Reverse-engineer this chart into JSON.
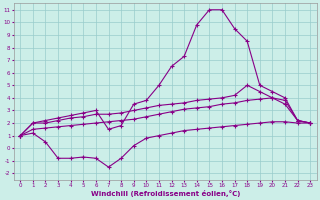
{
  "xlabel": "Windchill (Refroidissement éolien,°C)",
  "background_color": "#cceee8",
  "line_color": "#880088",
  "grid_color": "#99cccc",
  "xlim": [
    -0.5,
    23.5
  ],
  "ylim": [
    -2.5,
    11.5
  ],
  "xticks": [
    0,
    1,
    2,
    3,
    4,
    5,
    6,
    7,
    8,
    9,
    10,
    11,
    12,
    13,
    14,
    15,
    16,
    17,
    18,
    19,
    20,
    21,
    22,
    23
  ],
  "yticks": [
    -2,
    -1,
    0,
    1,
    2,
    3,
    4,
    5,
    6,
    7,
    8,
    9,
    10,
    11
  ],
  "line_spike": [
    [
      0,
      1
    ],
    [
      1,
      2
    ],
    [
      2,
      2.2
    ],
    [
      3,
      2.4
    ],
    [
      4,
      2.6
    ],
    [
      5,
      2.8
    ],
    [
      6,
      3.0
    ],
    [
      7,
      1.5
    ],
    [
      8,
      1.8
    ],
    [
      9,
      3.5
    ],
    [
      10,
      3.8
    ],
    [
      11,
      5.0
    ],
    [
      12,
      6.5
    ],
    [
      13,
      7.3
    ],
    [
      14,
      9.8
    ],
    [
      15,
      11.0
    ],
    [
      16,
      11.0
    ],
    [
      17,
      9.5
    ],
    [
      18,
      8.5
    ],
    [
      19,
      5.0
    ],
    [
      20,
      4.5
    ],
    [
      21,
      4.0
    ],
    [
      22,
      2.2
    ],
    [
      23,
      2.0
    ]
  ],
  "line_upper": [
    [
      0,
      1
    ],
    [
      1,
      2
    ],
    [
      2,
      2.0
    ],
    [
      3,
      2.2
    ],
    [
      4,
      2.4
    ],
    [
      5,
      2.5
    ],
    [
      6,
      2.7
    ],
    [
      7,
      2.7
    ],
    [
      8,
      2.8
    ],
    [
      9,
      3.0
    ],
    [
      10,
      3.2
    ],
    [
      11,
      3.4
    ],
    [
      12,
      3.5
    ],
    [
      13,
      3.6
    ],
    [
      14,
      3.8
    ],
    [
      15,
      3.9
    ],
    [
      16,
      4.0
    ],
    [
      17,
      4.2
    ],
    [
      18,
      5.0
    ],
    [
      19,
      4.5
    ],
    [
      20,
      4.0
    ],
    [
      21,
      3.5
    ],
    [
      22,
      2.2
    ],
    [
      23,
      2.0
    ]
  ],
  "line_middle": [
    [
      0,
      1
    ],
    [
      1,
      1.5
    ],
    [
      2,
      1.6
    ],
    [
      3,
      1.7
    ],
    [
      4,
      1.8
    ],
    [
      5,
      1.9
    ],
    [
      6,
      2.0
    ],
    [
      7,
      2.1
    ],
    [
      8,
      2.2
    ],
    [
      9,
      2.3
    ],
    [
      10,
      2.5
    ],
    [
      11,
      2.7
    ],
    [
      12,
      2.9
    ],
    [
      13,
      3.1
    ],
    [
      14,
      3.2
    ],
    [
      15,
      3.3
    ],
    [
      16,
      3.5
    ],
    [
      17,
      3.6
    ],
    [
      18,
      3.8
    ],
    [
      19,
      3.9
    ],
    [
      20,
      4.0
    ],
    [
      21,
      3.8
    ],
    [
      22,
      2.2
    ],
    [
      23,
      2.0
    ]
  ],
  "line_lower": [
    [
      0,
      1
    ],
    [
      1,
      1.2
    ],
    [
      2,
      0.5
    ],
    [
      3,
      -0.8
    ],
    [
      4,
      -0.8
    ],
    [
      5,
      -0.7
    ],
    [
      6,
      -0.8
    ],
    [
      7,
      -1.5
    ],
    [
      8,
      -0.8
    ],
    [
      9,
      0.2
    ],
    [
      10,
      0.8
    ],
    [
      11,
      1.0
    ],
    [
      12,
      1.2
    ],
    [
      13,
      1.4
    ],
    [
      14,
      1.5
    ],
    [
      15,
      1.6
    ],
    [
      16,
      1.7
    ],
    [
      17,
      1.8
    ],
    [
      18,
      1.9
    ],
    [
      19,
      2.0
    ],
    [
      20,
      2.1
    ],
    [
      21,
      2.1
    ],
    [
      22,
      2.0
    ],
    [
      23,
      2.0
    ]
  ]
}
